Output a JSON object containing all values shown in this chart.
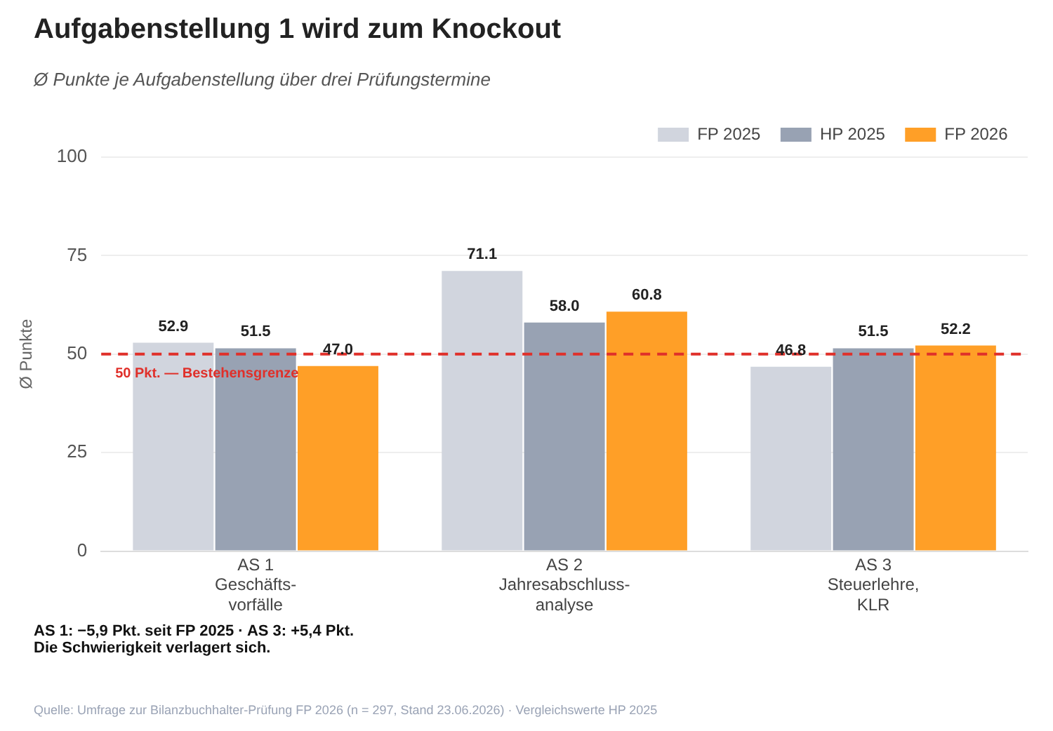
{
  "chart_data": {
    "type": "bar",
    "title": "Aufgabenstellung 1 wird zum Knockout",
    "subtitle": "Ø Punkte je Aufgabenstellung über drei Prüfungstermine",
    "ylabel": "Ø Punkte",
    "categories": [
      "AS 1\nGeschäfts-\nvorfälle",
      "AS 2\nJahresabschluss-\nanalyse",
      "AS 3\nSteuerlehre,\nKLR"
    ],
    "series": [
      {
        "name": "FP 2025",
        "color": "#d1d5de",
        "values": [
          52.9,
          71.1,
          46.8
        ],
        "value_labels": [
          "52.9",
          "71.1",
          "46.8"
        ]
      },
      {
        "name": "HP 2025",
        "color": "#98a2b3",
        "values": [
          51.5,
          58.0,
          51.5
        ],
        "value_labels": [
          "51.5",
          "58.0",
          "51.5"
        ]
      },
      {
        "name": "FP 2026",
        "color": "#ff9f27",
        "values": [
          47.0,
          60.8,
          52.2
        ],
        "value_labels": [
          "47.0",
          "60.8",
          "52.2"
        ]
      }
    ],
    "ylim": [
      0,
      100
    ],
    "yticks": [
      0,
      25,
      50,
      75,
      100
    ],
    "grid": "y",
    "legend": "top right",
    "ref_lines": [
      {
        "axis": "y",
        "value": 50,
        "label": "50 Pkt. — Bestehensgrenze",
        "color": "#e0302a",
        "line_style": "dashed"
      }
    ],
    "annotations": [
      "AS 1: −5,9 Pkt. seit FP 2025 · AS 3: +5,4 Pkt.\nDie Schwierigkeit verlagert sich.",
      "Quelle: Umfrage zur Bilanzbuchhalter-Prüfung FP 2026 (n = 297, Stand 23.06.2026) · Vergleichswerte HP 2025"
    ]
  }
}
